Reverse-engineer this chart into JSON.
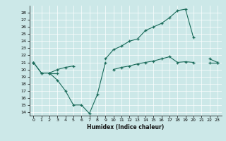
{
  "xlabel": "Humidex (Indice chaleur)",
  "background_color": "#cce8e8",
  "line_color": "#1a6b5a",
  "xlim": [
    -0.5,
    23.5
  ],
  "ylim": [
    13.5,
    29.0
  ],
  "xticks": [
    0,
    1,
    2,
    3,
    4,
    5,
    6,
    7,
    8,
    9,
    10,
    11,
    12,
    13,
    14,
    15,
    16,
    17,
    18,
    19,
    20,
    21,
    22,
    23
  ],
  "yticks": [
    14,
    15,
    16,
    17,
    18,
    19,
    20,
    21,
    22,
    23,
    24,
    25,
    26,
    27,
    28
  ],
  "series1_y": [
    21,
    19.5,
    19.5,
    18.5,
    17.0,
    15.0,
    15.0,
    13.8,
    16.5,
    21.0,
    null,
    null,
    null,
    null,
    null,
    null,
    null,
    null,
    null,
    null,
    null,
    null,
    null,
    null
  ],
  "series2_y": [
    21.0,
    19.5,
    19.5,
    20.0,
    20.3,
    20.5,
    null,
    null,
    null,
    21.5,
    22.8,
    23.3,
    24.0,
    24.3,
    25.5,
    26.0,
    26.5,
    27.3,
    28.3,
    28.5,
    24.5,
    null,
    21.5,
    21.0
  ],
  "series3_y": [
    21.0,
    null,
    19.5,
    19.5,
    null,
    null,
    null,
    null,
    null,
    null,
    20.0,
    20.3,
    20.5,
    20.8,
    21.0,
    21.2,
    21.5,
    21.8,
    21.0,
    21.1,
    21.0,
    null,
    21.0,
    21.0
  ]
}
